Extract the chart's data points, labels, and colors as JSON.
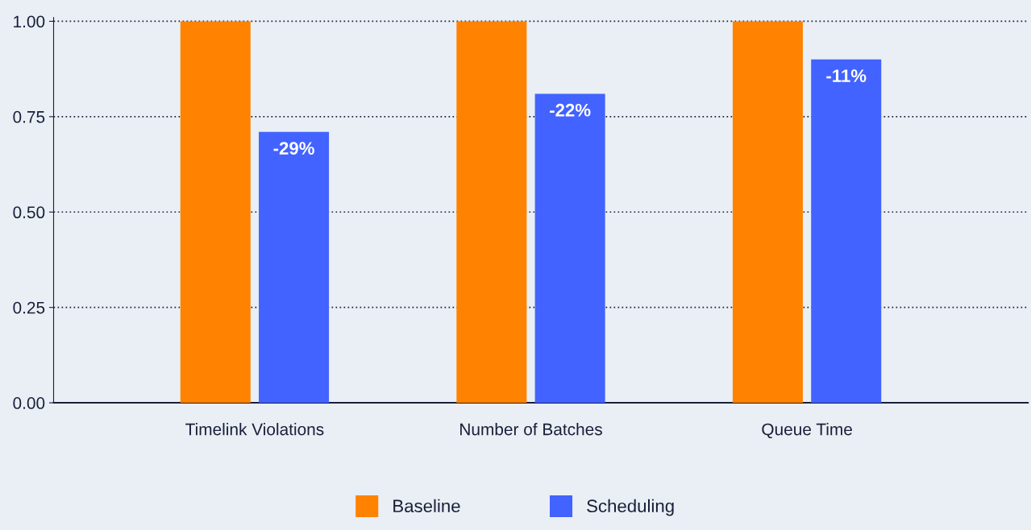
{
  "chart_data": {
    "type": "bar",
    "categories": [
      "Timelink Violations",
      "Number of Batches",
      "Queue Time"
    ],
    "series": [
      {
        "name": "Baseline",
        "color": "#ff8200",
        "values": [
          1.0,
          1.0,
          1.0
        ]
      },
      {
        "name": "Scheduling",
        "color": "#4263ff",
        "values": [
          0.71,
          0.81,
          0.9
        ]
      }
    ],
    "annotations": [
      "-29%",
      "-22%",
      "-11%"
    ],
    "ylim": [
      0,
      1.01
    ],
    "yticks": [
      {
        "value": 0,
        "label": "0.00"
      },
      {
        "value": 0.25,
        "label": "0.25"
      },
      {
        "value": 0.5,
        "label": "0.50"
      },
      {
        "value": 0.75,
        "label": "0.75"
      },
      {
        "value": 1.0,
        "label": "1.00"
      }
    ],
    "grid": "y",
    "legend": "bottom"
  }
}
